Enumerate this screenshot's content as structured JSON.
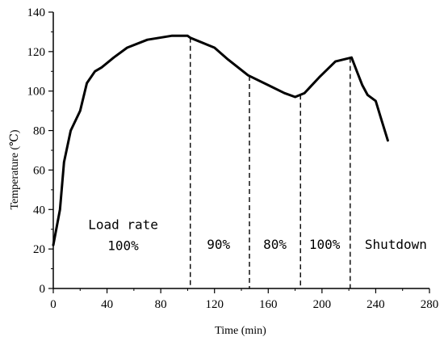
{
  "chart_data": {
    "type": "line",
    "xlabel": "Time (min)",
    "ylabel": "Temperature  (℃)",
    "xlim": [
      0,
      280
    ],
    "ylim": [
      0,
      140
    ],
    "x_ticks": [
      0,
      40,
      80,
      120,
      160,
      200,
      240,
      280
    ],
    "y_ticks": [
      0,
      20,
      40,
      60,
      80,
      100,
      120,
      140
    ],
    "grid": false,
    "series": [
      {
        "x": [
          0,
          5,
          8,
          13,
          20,
          25,
          31,
          36,
          45,
          55,
          70,
          88,
          100,
          102,
          120,
          130,
          145,
          160,
          172,
          180,
          187,
          198,
          210,
          222,
          226,
          230,
          234,
          240,
          244,
          249
        ],
        "y": [
          22,
          40,
          64,
          80,
          90,
          104,
          110,
          112,
          117,
          122,
          126,
          128,
          128,
          127,
          122,
          116,
          108,
          103,
          99,
          97,
          99,
          107,
          115,
          117,
          110,
          103,
          98,
          95,
          86,
          75
        ]
      }
    ],
    "dividers": [
      102,
      146,
      184,
      221
    ],
    "annotations": [
      {
        "lines": [
          "Load rate",
          "100%"
        ],
        "x": 52,
        "y": 30
      },
      {
        "lines": [
          "90%"
        ],
        "x": 123,
        "y": 20
      },
      {
        "lines": [
          "80%"
        ],
        "x": 165,
        "y": 20
      },
      {
        "lines": [
          "100%"
        ],
        "x": 202,
        "y": 20
      },
      {
        "lines": [
          "Shutdown"
        ],
        "x": 255,
        "y": 20
      }
    ]
  }
}
